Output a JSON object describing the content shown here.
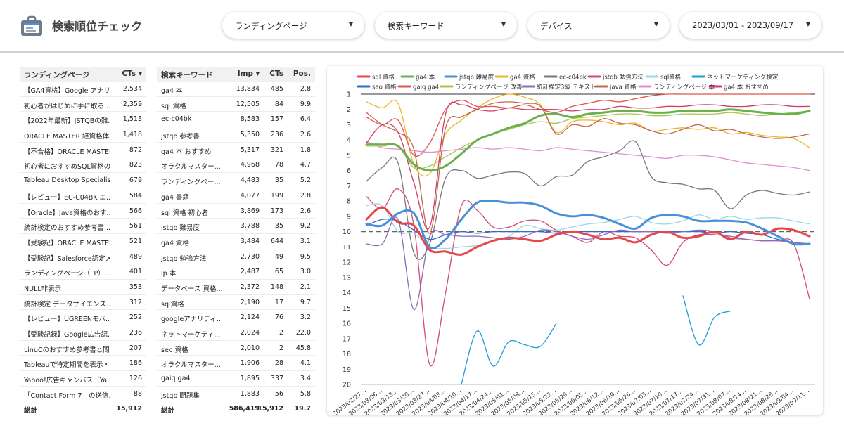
{
  "header": {
    "title": "検索順位チェック",
    "filters": [
      {
        "label": "ランディングページ"
      },
      {
        "label": "検索キーワード"
      },
      {
        "label": "デバイス"
      },
      {
        "label": "2023/03/01 - 2023/09/17"
      }
    ],
    "caret": "▼"
  },
  "landing_table": {
    "col_page": "ランディングページ",
    "col_cts": "CTs ▾",
    "rows": [
      {
        "page": "【GA4資格】Google アナリ...",
        "cts": "2,534"
      },
      {
        "page": "初心者がはじめに手に取る...",
        "cts": "2,359"
      },
      {
        "page": "【2022年最新】JSTQBの難...",
        "cts": "1,513"
      },
      {
        "page": "ORACLE MASTER 経資格体...",
        "cts": "1,418"
      },
      {
        "page": "【不合格】ORACLE MASTER...",
        "cts": "872"
      },
      {
        "page": "初心者におすすめSQL資格の...",
        "cts": "823"
      },
      {
        "page": "Tableau Desktop Specialist...",
        "cts": "679"
      },
      {
        "page": "【レビュー】EC-C04BK エ...",
        "cts": "584"
      },
      {
        "page": "【Oracle】Java資格のおす...",
        "cts": "566"
      },
      {
        "page": "統計検定のおすすめ参考書...",
        "cts": "561"
      },
      {
        "page": "【受験記】ORACLE MASTER...",
        "cts": "521"
      },
      {
        "page": "【受験記】Salesforce認定メ...",
        "cts": "489"
      },
      {
        "page": "ランディングページ（LP）...",
        "cts": "401"
      },
      {
        "page": "NULL非表示",
        "cts": "353"
      },
      {
        "page": "統計検定 データサイエンス...",
        "cts": "312"
      },
      {
        "page": "【レビュー】UGREENモバ...",
        "cts": "252"
      },
      {
        "page": "【受験記録】Google広告認...",
        "cts": "236"
      },
      {
        "page": "LinuCのおすすめ参考書と問...",
        "cts": "207"
      },
      {
        "page": "Tableauで特定期間を表示・...",
        "cts": "186"
      },
      {
        "page": "Yahoo!広告キャンパス（Ya...",
        "cts": "126"
      },
      {
        "page": "「Contact Form 7」の送信...",
        "cts": "88"
      }
    ],
    "total_label": "総計",
    "total_cts": "15,912"
  },
  "keyword_table": {
    "col_kw": "検索キーワード",
    "col_imp": "Imp ▾",
    "col_cts": "CTs",
    "col_pos": "Pos.",
    "rows": [
      {
        "kw": "ga4 本",
        "imp": "13,834",
        "cts": "485",
        "pos": "2.8"
      },
      {
        "kw": "sql 資格",
        "imp": "12,505",
        "cts": "84",
        "pos": "9.9"
      },
      {
        "kw": "ec-c04bk",
        "imp": "8,583",
        "cts": "157",
        "pos": "6.4"
      },
      {
        "kw": "jstqb 参考書",
        "imp": "5,350",
        "cts": "236",
        "pos": "2.6"
      },
      {
        "kw": "ga4 本 おすすめ",
        "imp": "5,317",
        "cts": "321",
        "pos": "1.8"
      },
      {
        "kw": "オラクルマスター...",
        "imp": "4,968",
        "cts": "78",
        "pos": "4.7"
      },
      {
        "kw": "ランディングペー...",
        "imp": "4,483",
        "cts": "35",
        "pos": "5.2"
      },
      {
        "kw": "ga4 書籍",
        "imp": "4,077",
        "cts": "199",
        "pos": "2.8"
      },
      {
        "kw": "sql 資格 初心者",
        "imp": "3,869",
        "cts": "173",
        "pos": "2.6"
      },
      {
        "kw": "jstqb 難易度",
        "imp": "3,788",
        "cts": "35",
        "pos": "9.2"
      },
      {
        "kw": "ga4 資格",
        "imp": "3,484",
        "cts": "644",
        "pos": "3.1"
      },
      {
        "kw": "jstqb 勉強方法",
        "imp": "2,730",
        "cts": "49",
        "pos": "9.5"
      },
      {
        "kw": "lp 本",
        "imp": "2,487",
        "cts": "65",
        "pos": "3.0"
      },
      {
        "kw": "データベース 資格...",
        "imp": "2,372",
        "cts": "148",
        "pos": "2.1"
      },
      {
        "kw": "sql資格",
        "imp": "2,190",
        "cts": "17",
        "pos": "9.7"
      },
      {
        "kw": "googleアナリティ...",
        "imp": "2,124",
        "cts": "76",
        "pos": "3.2"
      },
      {
        "kw": "ネットマーケティ...",
        "imp": "2,024",
        "cts": "2",
        "pos": "22.0"
      },
      {
        "kw": "seo 資格",
        "imp": "2,010",
        "cts": "2",
        "pos": "45.8"
      },
      {
        "kw": "オラクルマスター...",
        "imp": "1,906",
        "cts": "28",
        "pos": "4.1"
      },
      {
        "kw": "gaiq ga4",
        "imp": "1,895",
        "cts": "337",
        "pos": "3.4"
      },
      {
        "kw": "jstqb 問題集",
        "imp": "1,883",
        "cts": "56",
        "pos": "5.8"
      }
    ],
    "total_label": "総計",
    "total_imp": "586,419",
    "total_cts": "15,912",
    "total_pos": "19.7"
  },
  "chart_data": {
    "type": "line",
    "ylim": [
      1,
      20
    ],
    "y_inverted": true,
    "y_ticks": [
      1,
      2,
      3,
      4,
      5,
      6,
      7,
      8,
      9,
      10,
      11,
      12,
      13,
      14,
      15,
      16,
      17,
      18,
      19,
      20
    ],
    "reference_line": 10,
    "x": [
      "2023/02/27...",
      "2023/03/06...",
      "2023/03/13...",
      "2023/03/20...",
      "2023/03/27...",
      "2023/04/03...",
      "2023/04/10...",
      "2023/04/17...",
      "2023/04/24...",
      "2023/05/01...",
      "2023/05/08...",
      "2023/05/15...",
      "2023/05/22...",
      "2023/05/29...",
      "2023/06/05...",
      "2023/06/12...",
      "2023/06/19...",
      "2023/06/26...",
      "2023/07/03...",
      "2023/07/10...",
      "2023/07/17...",
      "2023/07/24...",
      "2023/07/31...",
      "2023/08/07...",
      "2023/08/14...",
      "2023/08/21...",
      "2023/08/28...",
      "2023/09/04...",
      "2023/09/11..."
    ],
    "series": [
      {
        "name": "sql 資格",
        "color": "#e8474a",
        "width": 3,
        "values": [
          9.2,
          8.4,
          9.4,
          9.6,
          11.2,
          11.3,
          11.5,
          11.0,
          10.6,
          10.4,
          10.5,
          10.6,
          10.2,
          10.0,
          10.2,
          10.5,
          10.4,
          10.7,
          10.2,
          10.0,
          10.4,
          10.3,
          10.0,
          10.5,
          10.0,
          10.2,
          9.8,
          9.9,
          10.3
        ]
      },
      {
        "name": "ga4 本",
        "color": "#6ab04c",
        "width": 3,
        "values": [
          4.3,
          4.3,
          4.4,
          5.6,
          6.0,
          5.7,
          4.9,
          4.0,
          3.6,
          3.2,
          2.9,
          2.4,
          2.3,
          2.5,
          2.3,
          2.2,
          2.1,
          2.1,
          2.2,
          2.2,
          2.1,
          2.1,
          2.1,
          2.0,
          2.1,
          2.2,
          2.3,
          2.3,
          2.1
        ]
      },
      {
        "name": "jstqb 難易度",
        "color": "#4a90d9",
        "width": 3,
        "values": [
          9.5,
          9.6,
          8.8,
          8.8,
          11.0,
          10.5,
          9.2,
          8.1,
          8.0,
          8.1,
          8.1,
          8.3,
          8.8,
          9.0,
          8.9,
          9.1,
          9.5,
          9.8,
          9.1,
          8.9,
          9.0,
          9.3,
          9.3,
          9.3,
          9.4,
          9.8,
          10.3,
          10.8,
          10.8
        ]
      },
      {
        "name": "ga4 資格",
        "color": "#f0b429",
        "width": 1.3,
        "values": [
          1.5,
          1.9,
          1.6,
          5.6,
          6.2,
          3.6,
          2.7,
          1.9,
          1.3,
          1.0,
          1.2,
          1.7,
          3.5,
          2.8,
          2.7,
          2.8,
          3.0,
          2.9,
          3.4,
          3.3,
          3.2,
          3.3,
          3.2,
          3.6,
          3.5,
          3.7,
          3.8,
          3.9,
          4.5
        ]
      },
      {
        "name": "ec-c04bk",
        "color": "#777777",
        "width": 1.3,
        "values": [
          6.7,
          5.8,
          5.5,
          11.4,
          10.8,
          6.5,
          6.0,
          6.5,
          6.3,
          6.1,
          6.2,
          7.0,
          6.4,
          6.3,
          5.4,
          5.1,
          4.7,
          4.1,
          6.4,
          6.8,
          6.9,
          7.2,
          7.3,
          8.5,
          7.6,
          7.3,
          7.5,
          7.6,
          7.4
        ]
      },
      {
        "name": "jstqb 勉強方法",
        "color": "#d14b73",
        "width": 1.3,
        "values": [
          7.7,
          8.5,
          7.2,
          9.6,
          18.7,
          14.0,
          8.3,
          8.6,
          9.7,
          9.7,
          9.3,
          9.3,
          9.9,
          10.3,
          10.7,
          10.0,
          10.3,
          10.4,
          11.2,
          12.2,
          10.7,
          10.2,
          10.2,
          10.3,
          10.5,
          10.6,
          10.6,
          10.8,
          14.4
        ]
      },
      {
        "name": "sql資格",
        "color": "#9ad8e8",
        "width": 1.3,
        "values": [
          8.3,
          8.3,
          10.0,
          10.1,
          11.0,
          11.1,
          11.0,
          10.9,
          10.6,
          10.3,
          9.6,
          9.8,
          9.9,
          9.7,
          9.5,
          9.4,
          9.2,
          9.0,
          9.4,
          9.5,
          9.3,
          8.9,
          9.2,
          9.0,
          9.2,
          9.1,
          9.1,
          9.3,
          9.5
        ]
      },
      {
        "name": "ネットマーケティング検定",
        "color": "#1a9fd6",
        "width": 1.3,
        "values": [
          null,
          null,
          null,
          null,
          null,
          null,
          20.0,
          16.5,
          18.8,
          17.2,
          17.4,
          17.5,
          16.0,
          null,
          null,
          null,
          null,
          null,
          null,
          null,
          14.2,
          17.4,
          15.6,
          15.2,
          null,
          null,
          null,
          null,
          null
        ]
      },
      {
        "name": "seo 資格",
        "color": "#2d6bcf",
        "width": 1.3,
        "values": [
          9.6,
          9.2,
          9.3,
          9.9,
          10.5,
          10.2,
          10.0,
          10.1,
          10.0,
          10.0,
          10.0,
          10.0,
          10.1,
          10.0,
          10.0,
          10.0,
          10.0,
          10.0,
          10.0,
          10.0,
          10.0,
          10.0,
          10.1,
          10.0,
          10.1,
          10.2,
          10.5,
          10.7,
          10.8
        ]
      },
      {
        "name": "gaiq ga4",
        "color": "#e2554d",
        "width": 1.3,
        "values": [
          2.5,
          3.0,
          2.7,
          5.0,
          4.2,
          2.0,
          1.4,
          1.8,
          1.8,
          1.9,
          1.7,
          2.0,
          2.2,
          1.8,
          1.6,
          1.4,
          1.5,
          1.3,
          1.1,
          1.0,
          1.0,
          1.0,
          1.0,
          1.0,
          1.0,
          1.0,
          1.0,
          1.0,
          1.0
        ]
      },
      {
        "name": "ランディングページ 改善",
        "color": "#a6c94d",
        "width": 1.3,
        "values": [
          4.4,
          4.4,
          4.4,
          5.8,
          5.7,
          5.1,
          4.5,
          4.0,
          3.6,
          3.3,
          3.0,
          2.8,
          2.9,
          2.6,
          2.5,
          2.4,
          2.3,
          2.3,
          2.4,
          2.4,
          2.3,
          2.3,
          2.3,
          2.2,
          2.3,
          2.4,
          2.3,
          2.2,
          2.1
        ]
      },
      {
        "name": "統計検定3級 テキスト",
        "color": "#8e6cb8",
        "width": 1.3,
        "values": [
          10.8,
          10.8,
          9.2,
          15.1,
          10.3,
          10.2,
          10.3,
          10.3,
          10.4,
          10.5,
          10.3,
          9.9,
          10.0,
          10.3,
          10.5,
          10.2,
          9.9,
          10.0,
          10.0,
          10.1,
          10.0,
          9.9,
          10.0,
          10.4,
          10.5,
          10.6,
          10.6,
          10.7,
          10.8
        ]
      },
      {
        "name": "java 資格",
        "color": "#c0694b",
        "width": 1.3,
        "values": [
          2.2,
          3.0,
          3.5,
          4.6,
          10.1,
          3.2,
          2.5,
          2.0,
          1.6,
          1.5,
          1.6,
          1.8,
          3.6,
          3.0,
          3.1,
          2.6,
          2.9,
          3.0,
          3.4,
          3.6,
          3.3,
          3.0,
          3.4,
          3.3,
          3.6,
          3.8,
          3.9,
          3.8,
          3.6
        ]
      },
      {
        "name": "ランディングページ 本",
        "color": "#e08fd1",
        "width": 1.3,
        "values": [
          4.1,
          4.5,
          4.6,
          4.7,
          4.8,
          4.7,
          4.6,
          4.5,
          4.6,
          4.5,
          4.6,
          4.7,
          4.5,
          4.6,
          4.7,
          4.8,
          4.9,
          5.0,
          5.1,
          5.2,
          5.0,
          5.0,
          5.1,
          5.3,
          5.5,
          5.6,
          5.7,
          5.8,
          6.0
        ]
      },
      {
        "name": "ga4 本 おすすめ",
        "color": "#d13a6a",
        "width": 1.3,
        "values": [
          4.2,
          3.0,
          3.5,
          6.8,
          9.7,
          2.3,
          1.7,
          2.0,
          2.1,
          1.9,
          2.0,
          2.0,
          2.0,
          2.1,
          2.0,
          2.0,
          1.8,
          1.9,
          1.9,
          1.8,
          1.8,
          1.7,
          1.7,
          1.8,
          1.8,
          1.7,
          1.7,
          1.8,
          1.8
        ]
      }
    ]
  }
}
